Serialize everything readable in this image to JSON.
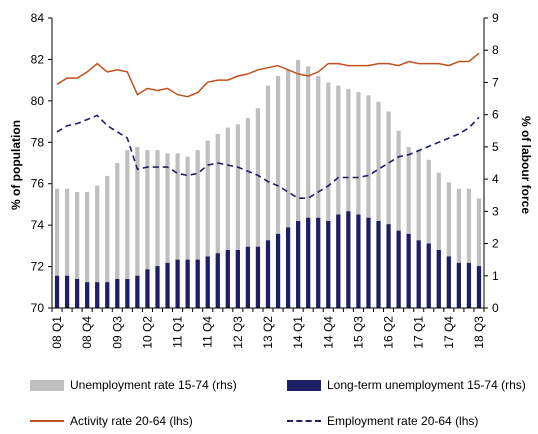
{
  "chart_data": {
    "type": "bar",
    "title": "",
    "ylabel_left": "% of population",
    "ylabel_right": "% of labour force",
    "ylim_left": [
      70,
      84
    ],
    "yticks_left": [
      70,
      72,
      74,
      76,
      78,
      80,
      82,
      84
    ],
    "ylim_right": [
      0,
      9
    ],
    "yticks_right": [
      0,
      1,
      2,
      3,
      4,
      5,
      6,
      7,
      8,
      9
    ],
    "x": [
      "08 Q1",
      "08 Q2",
      "08 Q3",
      "08 Q4",
      "09 Q1",
      "09 Q2",
      "09 Q3",
      "09 Q4",
      "10 Q1",
      "10 Q2",
      "10 Q3",
      "10 Q4",
      "11 Q1",
      "11 Q2",
      "11 Q3",
      "11 Q4",
      "12 Q1",
      "12 Q2",
      "12 Q3",
      "12 Q4",
      "13 Q1",
      "13 Q2",
      "13 Q3",
      "13 Q4",
      "14 Q1",
      "14 Q2",
      "14 Q3",
      "14 Q4",
      "15 Q1",
      "15 Q2",
      "15 Q3",
      "15 Q4",
      "16 Q1",
      "16 Q2",
      "16 Q3",
      "16 Q4",
      "17 Q1",
      "17 Q2",
      "17 Q3",
      "17 Q4",
      "18 Q1",
      "18 Q2",
      "18 Q3"
    ],
    "xtick_labels": [
      "08 Q1",
      "08 Q4",
      "09 Q3",
      "10 Q2",
      "11 Q1",
      "11 Q4",
      "12 Q3",
      "13 Q2",
      "14 Q1",
      "14 Q4",
      "15 Q3",
      "16 Q2",
      "17 Q1",
      "17 Q4",
      "18 Q3"
    ],
    "series": [
      {
        "name": "Unemployment rate 15-74 (rhs)",
        "kind": "bar",
        "axis": "right",
        "color": "#bfbfbf",
        "values": [
          3.7,
          3.7,
          3.6,
          3.6,
          3.8,
          4.1,
          4.5,
          4.9,
          5.0,
          4.9,
          4.9,
          4.8,
          4.8,
          4.7,
          4.9,
          5.2,
          5.4,
          5.6,
          5.7,
          5.9,
          6.2,
          6.9,
          7.2,
          7.4,
          7.7,
          7.5,
          7.2,
          7.0,
          6.9,
          6.8,
          6.7,
          6.6,
          6.4,
          6.1,
          5.5,
          5.0,
          4.9,
          4.6,
          4.2,
          3.9,
          3.7,
          3.7,
          3.4
        ]
      },
      {
        "name": "Long-term unemployment 15-74 (rhs)",
        "kind": "bar",
        "axis": "right",
        "color": "#1f1f66",
        "values": [
          1.0,
          1.0,
          0.9,
          0.8,
          0.8,
          0.8,
          0.9,
          0.9,
          1.0,
          1.2,
          1.3,
          1.4,
          1.5,
          1.5,
          1.5,
          1.6,
          1.7,
          1.8,
          1.8,
          1.9,
          1.9,
          2.1,
          2.3,
          2.5,
          2.7,
          2.8,
          2.8,
          2.7,
          2.9,
          3.0,
          2.9,
          2.8,
          2.7,
          2.6,
          2.4,
          2.3,
          2.1,
          2.0,
          1.8,
          1.6,
          1.4,
          1.4,
          1.3
        ]
      },
      {
        "name": "Activity rate 20-64 (lhs)",
        "kind": "line",
        "axis": "left",
        "color": "#c0501f",
        "dash": "solid",
        "values": [
          80.8,
          81.1,
          81.1,
          81.4,
          81.8,
          81.4,
          81.5,
          81.4,
          80.3,
          80.6,
          80.5,
          80.6,
          80.3,
          80.2,
          80.4,
          80.9,
          81.0,
          81.0,
          81.2,
          81.3,
          81.5,
          81.6,
          81.7,
          81.5,
          81.3,
          81.2,
          81.4,
          81.8,
          81.8,
          81.7,
          81.7,
          81.7,
          81.8,
          81.8,
          81.7,
          81.9,
          81.8,
          81.8,
          81.8,
          81.7,
          81.9,
          81.9,
          82.3
        ]
      },
      {
        "name": "Employment rate 20-64 (lhs)",
        "kind": "line",
        "axis": "left",
        "color": "#1f1f66",
        "dash": "dashed",
        "values": [
          78.5,
          78.8,
          78.9,
          79.1,
          79.3,
          78.8,
          78.5,
          78.2,
          76.7,
          76.8,
          76.8,
          76.8,
          76.5,
          76.4,
          76.5,
          76.9,
          77.0,
          76.9,
          76.8,
          76.6,
          76.4,
          76.1,
          75.9,
          75.6,
          75.3,
          75.3,
          75.6,
          75.9,
          76.3,
          76.3,
          76.3,
          76.4,
          76.7,
          77.0,
          77.3,
          77.4,
          77.6,
          77.8,
          78.0,
          78.2,
          78.4,
          78.7,
          79.2
        ]
      }
    ],
    "grid": false,
    "legend_position": "bottom"
  }
}
